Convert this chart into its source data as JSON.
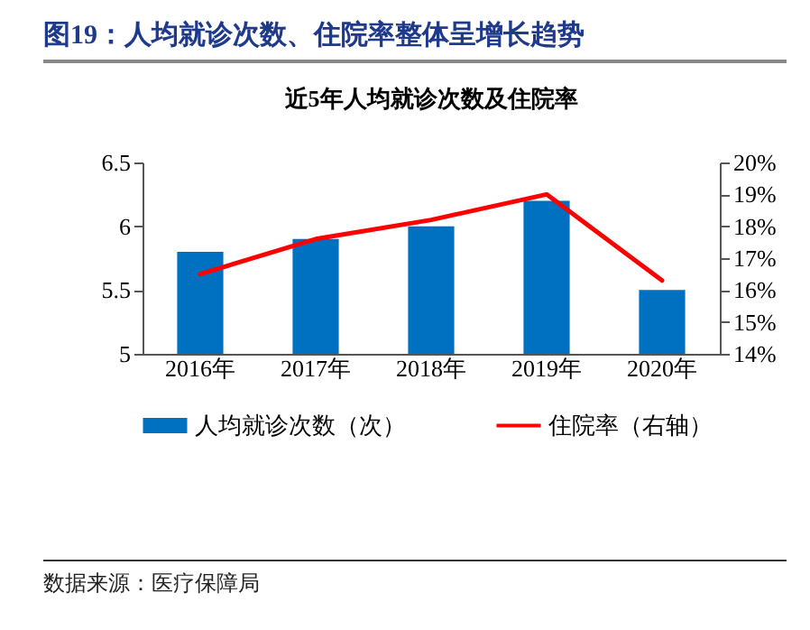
{
  "chart_data": {
    "type": "bar",
    "title": "图19：人均就诊次数、住院率整体呈增长趋势",
    "subtitle": "近5年人均就诊次数及住院率",
    "categories": [
      "2016年",
      "2017年",
      "2018年",
      "2019年",
      "2020年"
    ],
    "series": [
      {
        "name": "人均就诊次数（次）",
        "color": "#0070c0",
        "values": [
          5.8,
          5.9,
          6.0,
          6.2,
          5.5
        ]
      },
      {
        "name": "住院率（右轴）",
        "type": "line",
        "axis": "y2",
        "color": "#ff0000",
        "values": [
          16.5,
          17.6,
          18.2,
          19.0,
          16.3
        ]
      }
    ],
    "ylim": [
      5,
      6.5
    ],
    "yticks": [
      5,
      5.5,
      6,
      6.5
    ],
    "y2lim": [
      14,
      20
    ],
    "y2ticks": [
      {
        "value": 14,
        "label": "14%"
      },
      {
        "value": 15,
        "label": "15%"
      },
      {
        "value": 16,
        "label": "16%"
      },
      {
        "value": 17,
        "label": "17%"
      },
      {
        "value": 18,
        "label": "18%"
      },
      {
        "value": 19,
        "label": "19%"
      },
      {
        "value": 20,
        "label": "20%"
      }
    ],
    "grid": false,
    "legend": "bottom",
    "annotations": [
      "数据来源：医疗保障局"
    ]
  }
}
